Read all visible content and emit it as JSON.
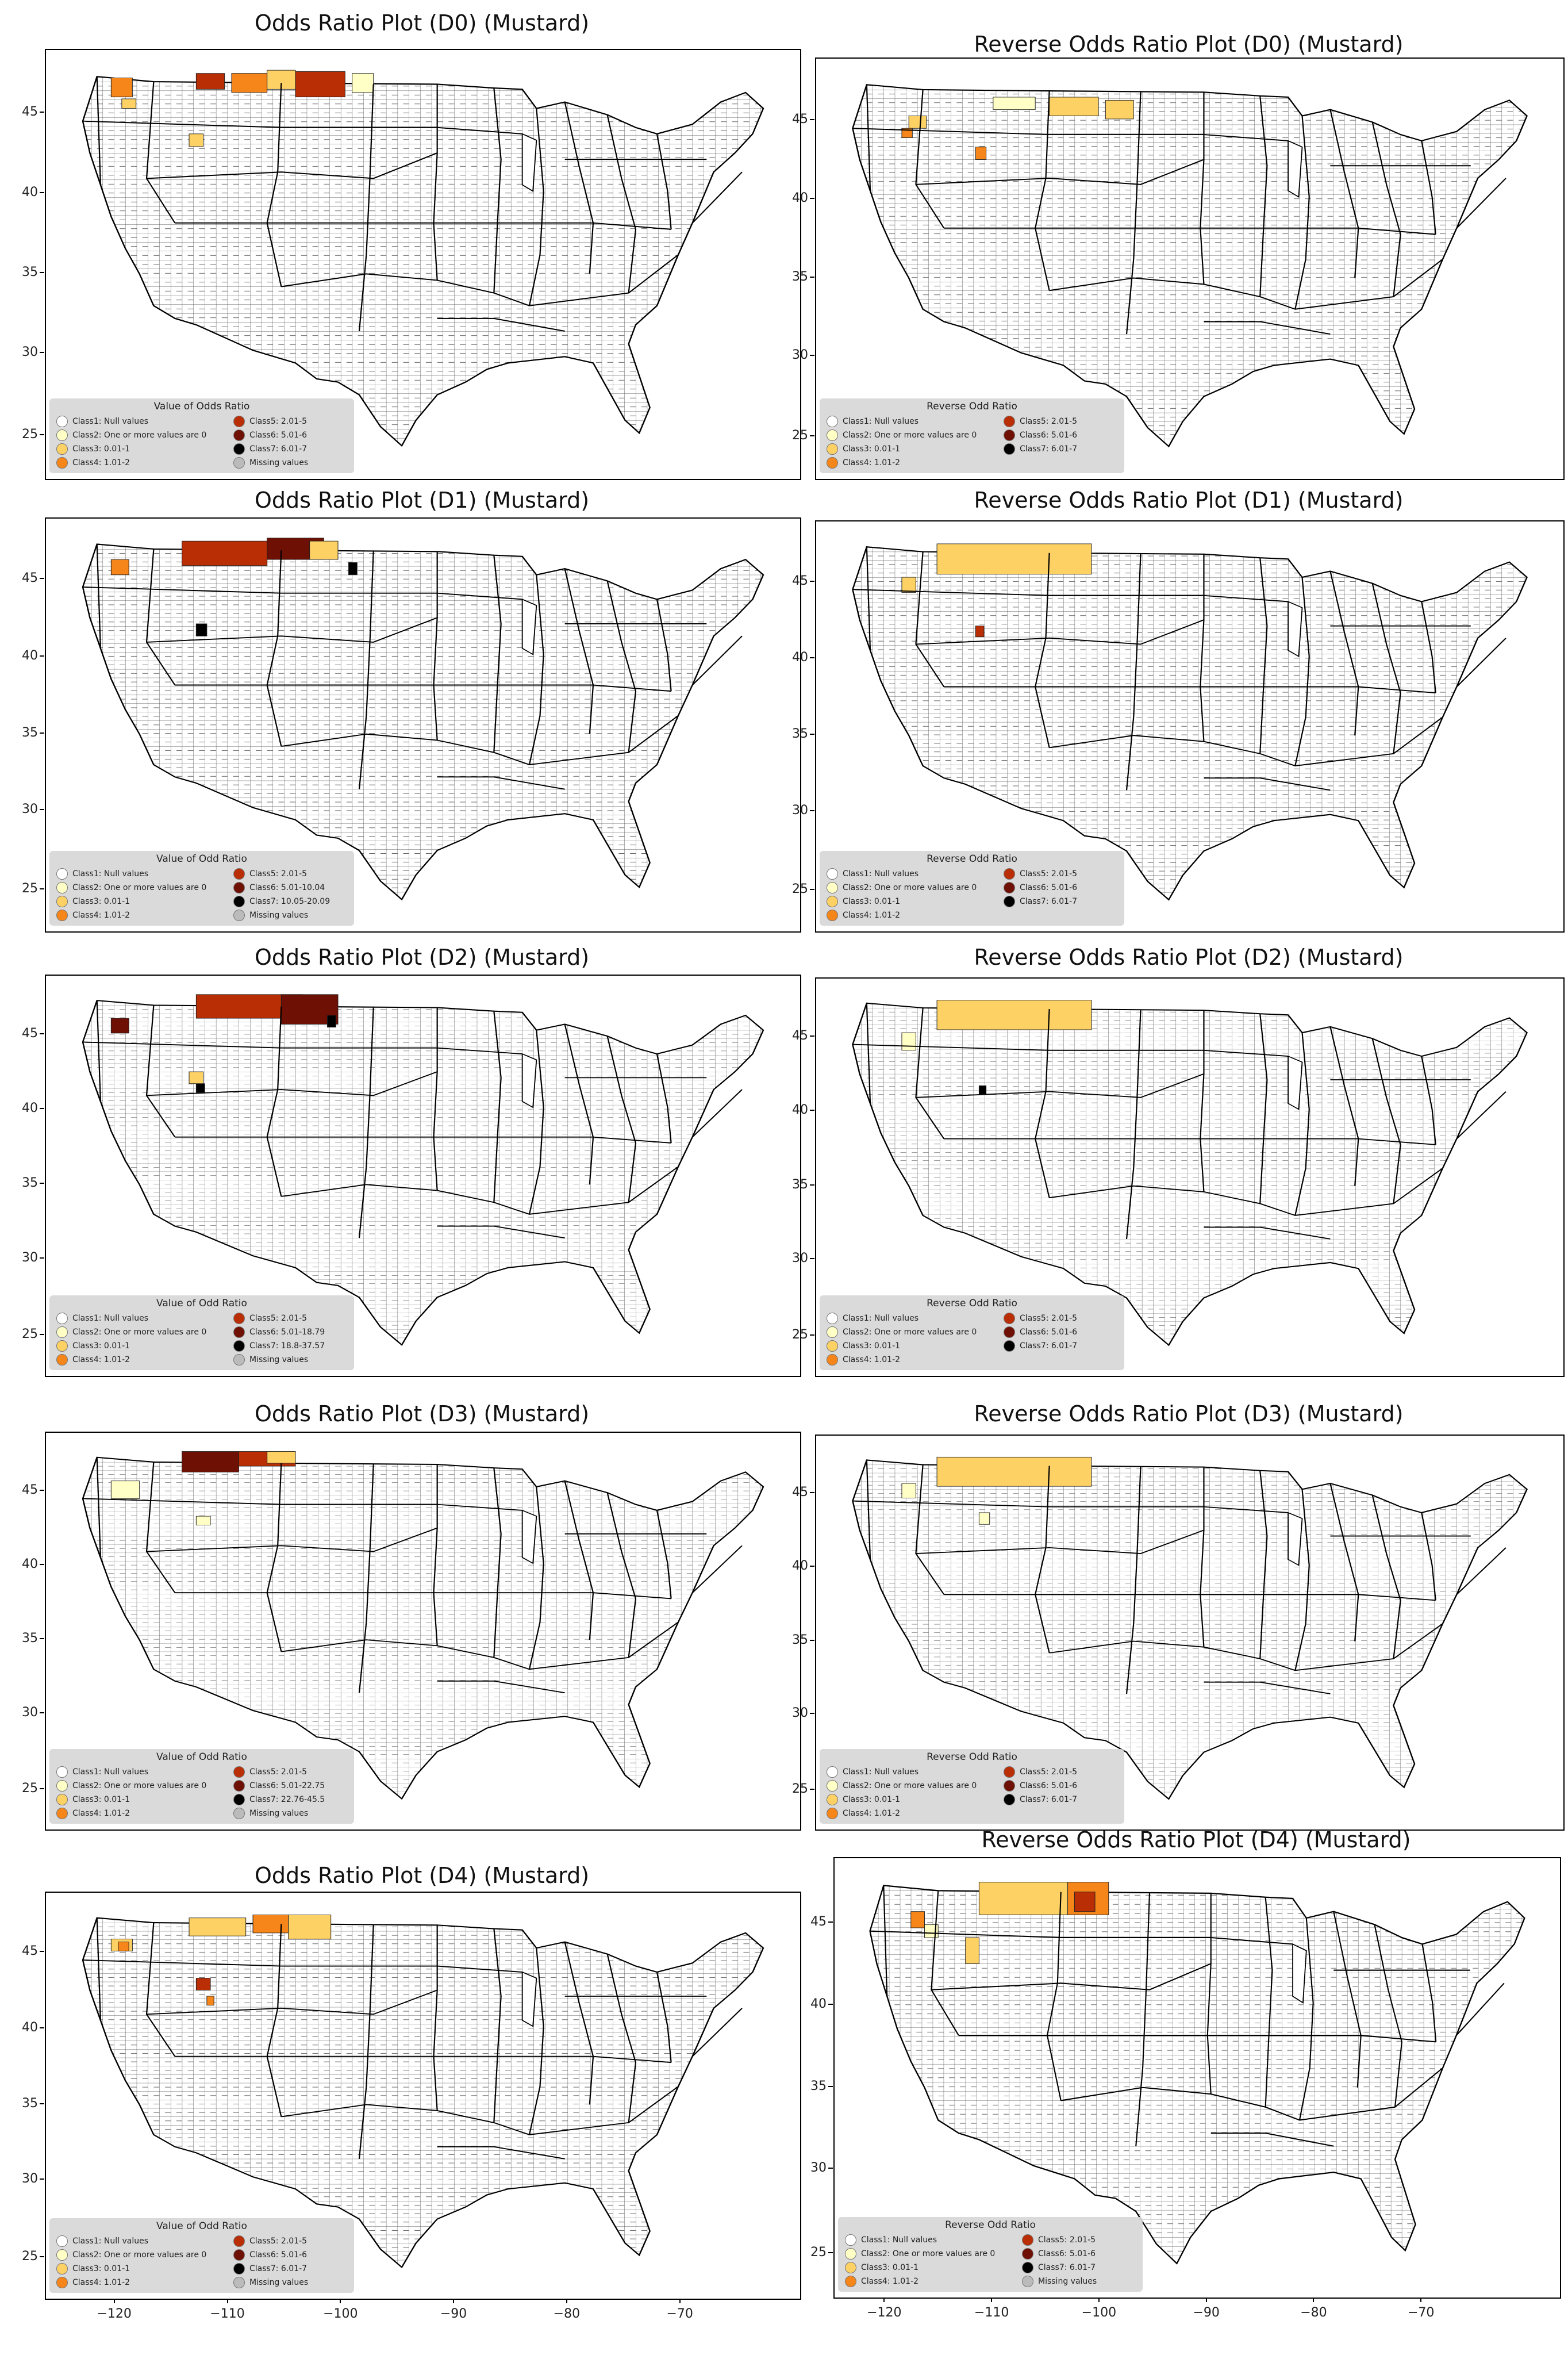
{
  "colors": {
    "class1": "#ffffff",
    "class2": "#ffffc6",
    "class3": "#fed165",
    "class4": "#f6861a",
    "class5": "#b92e05",
    "class6": "#6e1004",
    "class7": "#000000",
    "missing": "#bbbbbb"
  },
  "panels": [
    {
      "title": "Odds Ratio Plot (D0) (Mustard)",
      "legend_title": "Value of Odds Ratio",
      "legend": [
        "Class1: Null values",
        "Class2: One or more values are 0",
        "Class3: 0.01-1",
        "Class4: 1.01-2",
        "Class5: 2.01-5",
        "Class6: 5.01-6",
        "Class7: 6.01-7",
        "Missing values"
      ]
    },
    {
      "title": "Reverse Odds Ratio Plot (D0) (Mustard)",
      "legend_title": "Reverse Odd Ratio",
      "legend": [
        "Class1: Null values",
        "Class2: One or more values are 0",
        "Class3: 0.01-1",
        "Class4: 1.01-2",
        "Class5: 2.01-5",
        "Class6: 5.01-6",
        "Class7: 6.01-7"
      ]
    },
    {
      "title": "Odds Ratio Plot (D1) (Mustard)",
      "legend_title": "Value of Odd Ratio",
      "legend": [
        "Class1: Null values",
        "Class2: One or more values are 0",
        "Class3: 0.01-1",
        "Class4: 1.01-2",
        "Class5: 2.01-5",
        "Class6: 5.01-10.04",
        "Class7: 10.05-20.09",
        "Missing values"
      ]
    },
    {
      "title": "Reverse Odds Ratio Plot (D1) (Mustard)",
      "legend_title": "Reverse Odd Ratio",
      "legend": [
        "Class1: Null values",
        "Class2: One or more values are 0",
        "Class3: 0.01-1",
        "Class4: 1.01-2",
        "Class5: 2.01-5",
        "Class6: 5.01-6",
        "Class7: 6.01-7"
      ]
    },
    {
      "title": "Odds Ratio Plot (D2) (Mustard)",
      "legend_title": "Value of Odd Ratio",
      "legend": [
        "Class1: Null values",
        "Class2: One or more values are 0",
        "Class3: 0.01-1",
        "Class4: 1.01-2",
        "Class5: 2.01-5",
        "Class6: 5.01-18.79",
        "Class7: 18.8-37.57",
        "Missing values"
      ]
    },
    {
      "title": "Reverse Odds Ratio Plot (D2) (Mustard)",
      "legend_title": "Reverse Odd Ratio",
      "legend": [
        "Class1: Null values",
        "Class2: One or more values are 0",
        "Class3: 0.01-1",
        "Class4: 1.01-2",
        "Class5: 2.01-5",
        "Class6: 5.01-6",
        "Class7: 6.01-7"
      ]
    },
    {
      "title": "Odds Ratio Plot (D3) (Mustard)",
      "legend_title": "Value of Odd Ratio",
      "legend": [
        "Class1: Null values",
        "Class2: One or more values are 0",
        "Class3: 0.01-1",
        "Class4: 1.01-2",
        "Class5: 2.01-5",
        "Class6: 5.01-22.75",
        "Class7: 22.76-45.5",
        "Missing values"
      ]
    },
    {
      "title": "Reverse Odds Ratio Plot (D3) (Mustard)",
      "legend_title": "Reverse Odd Ratio",
      "legend": [
        "Class1: Null values",
        "Class2: One or more values are 0",
        "Class3: 0.01-1",
        "Class4: 1.01-2",
        "Class5: 2.01-5",
        "Class6: 5.01-6",
        "Class7: 6.01-7"
      ]
    },
    {
      "title": "Odds Ratio Plot (D4) (Mustard)",
      "legend_title": "Value of Odd Ratio",
      "legend": [
        "Class1: Null values",
        "Class2: One or more values are 0",
        "Class3: 0.01-1",
        "Class4: 1.01-2",
        "Class5: 2.01-5",
        "Class6: 5.01-6",
        "Class7: 6.01-7",
        "Missing values"
      ]
    },
    {
      "title": "Reverse Odds Ratio Plot (D4) (Mustard)",
      "legend_title": "Reverse Odd Ratio",
      "legend": [
        "Class1: Null values",
        "Class2: One or more values are 0",
        "Class3: 0.01-1",
        "Class4: 1.01-2",
        "Class5: 2.01-5",
        "Class6: 5.01-6",
        "Class7: 6.01-7",
        "Missing values"
      ]
    }
  ],
  "y_ticks": [
    "45",
    "40",
    "35",
    "30",
    "25"
  ],
  "x_ticks": [
    "−120",
    "−110",
    "−100",
    "−90",
    "−80",
    "−70"
  ]
}
